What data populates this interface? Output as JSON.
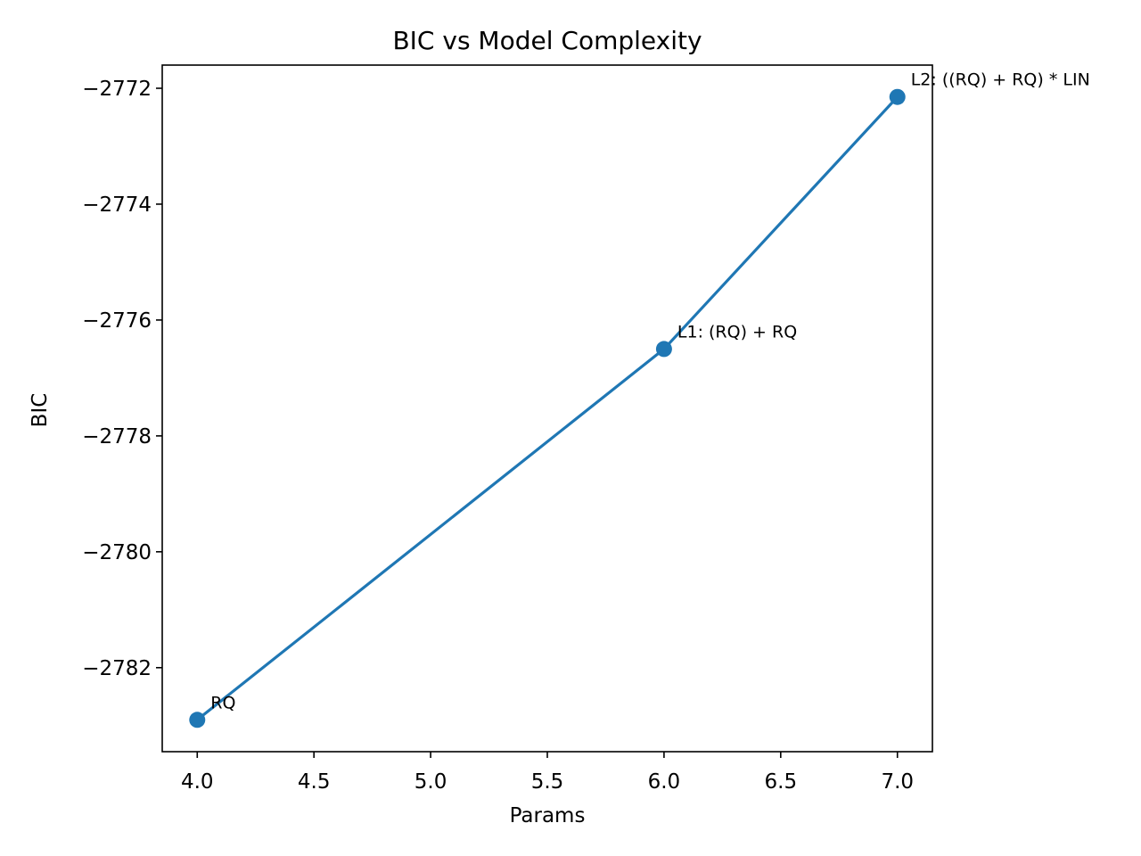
{
  "chart_data": {
    "type": "line",
    "title": "BIC vs Model Complexity",
    "xlabel": "Params",
    "ylabel": "BIC",
    "xlim": [
      3.85,
      7.15
    ],
    "ylim": [
      -2783.45,
      -2771.6
    ],
    "xticks": [
      4.0,
      4.5,
      5.0,
      5.5,
      6.0,
      6.5,
      7.0
    ],
    "xtick_labels": [
      "4.0",
      "4.5",
      "5.0",
      "5.5",
      "6.0",
      "6.5",
      "7.0"
    ],
    "yticks": [
      -2782,
      -2780,
      -2778,
      -2776,
      -2774,
      -2772
    ],
    "ytick_labels": [
      "−2782",
      "−2780",
      "−2778",
      "−2776",
      "−2774",
      "−2772"
    ],
    "grid": false,
    "color": "#1f77b4",
    "series": [
      {
        "x": [
          4,
          6,
          7
        ],
        "y": [
          -2782.9,
          -2776.5,
          -2772.15
        ],
        "labels": [
          "RQ",
          "L1: (RQ) + RQ",
          "L2: ((RQ) + RQ) * LIN"
        ]
      }
    ]
  }
}
